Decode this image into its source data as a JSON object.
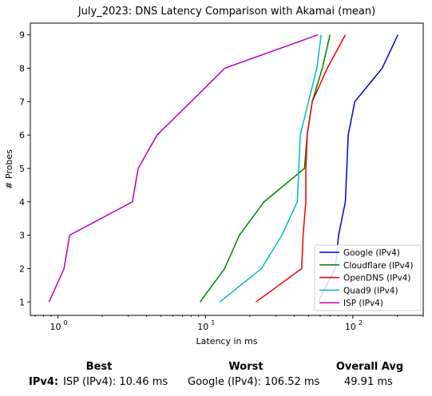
{
  "chart_data": {
    "type": "line",
    "title": "July_2023: DNS Latency Comparison with Akamai (mean)",
    "xlabel": "Latency in ms",
    "ylabel": "# Probes",
    "xscale": "log",
    "xlim": [
      0.65,
      300
    ],
    "ylim": [
      0.6,
      9.35
    ],
    "x_ticks": [
      {
        "value": 1,
        "label": "10",
        "exp": "0"
      },
      {
        "value": 10,
        "label": "10",
        "exp": "1"
      },
      {
        "value": 100,
        "label": "10",
        "exp": "2"
      }
    ],
    "y_ticks": [
      "1",
      "2",
      "3",
      "4",
      "5",
      "6",
      "7",
      "8",
      "9"
    ],
    "legend_position": "lower-right",
    "grid": false,
    "series": [
      {
        "name": "Google (IPv4)",
        "color": "#0000cc",
        "points": [
          [
            58,
            1
          ],
          [
            76,
            2
          ],
          [
            80,
            3
          ],
          [
            89,
            4
          ],
          [
            91,
            5
          ],
          [
            93,
            6
          ],
          [
            103,
            7
          ],
          [
            158,
            8
          ],
          [
            202,
            9
          ]
        ]
      },
      {
        "name": "Cloudflare (IPv4)",
        "color": "#008000",
        "points": [
          [
            9.2,
            1
          ],
          [
            13.5,
            2
          ],
          [
            17,
            3
          ],
          [
            25,
            4
          ],
          [
            47,
            5
          ],
          [
            49,
            6
          ],
          [
            53,
            7
          ],
          [
            62,
            8
          ],
          [
            70,
            9
          ]
        ]
      },
      {
        "name": "OpenDNS (IPv4)",
        "color": "#ee0000",
        "points": [
          [
            22,
            1
          ],
          [
            45,
            2
          ],
          [
            46,
            3
          ],
          [
            48,
            4
          ],
          [
            48,
            5
          ],
          [
            49,
            6
          ],
          [
            53,
            7
          ],
          [
            67,
            8
          ],
          [
            89,
            9
          ]
        ]
      },
      {
        "name": "Quad9 (IPv4)",
        "color": "#00bbbb",
        "points": [
          [
            12.5,
            1
          ],
          [
            24,
            2
          ],
          [
            33,
            3
          ],
          [
            42,
            4
          ],
          [
            43,
            5
          ],
          [
            44,
            6
          ],
          [
            50,
            7
          ],
          [
            57,
            8
          ],
          [
            61,
            9
          ]
        ]
      },
      {
        "name": "ISP (IPv4)",
        "color": "#bb00bb",
        "points": [
          [
            0.87,
            1
          ],
          [
            1.1,
            2
          ],
          [
            1.2,
            3
          ],
          [
            3.2,
            4
          ],
          [
            3.5,
            5
          ],
          [
            4.7,
            6
          ],
          [
            8,
            7
          ],
          [
            13.5,
            8
          ],
          [
            58,
            9
          ]
        ]
      }
    ]
  },
  "summary": {
    "row_label": "IPv4",
    "best_header": "Best",
    "worst_header": "Worst",
    "avg_header": "Overall Avg",
    "best_value": "ISP (IPv4): 10.46 ms",
    "worst_value": "Google (IPv4): 106.52 ms",
    "avg_value": "49.91 ms"
  }
}
